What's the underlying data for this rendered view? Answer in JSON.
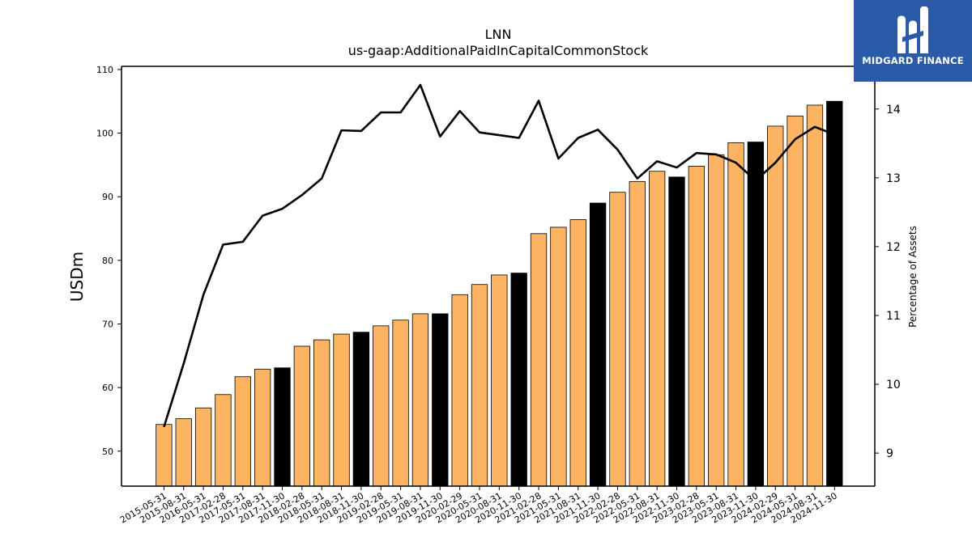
{
  "chart_data": {
    "type": "bar",
    "title": "LNN",
    "subtitle": "us-gaap:AdditionalPaidInCapitalCommonStock",
    "ylabel": "USDm",
    "y2label": "Percentage of Assets",
    "ylim": [
      44.5,
      110.5
    ],
    "y2lim": [
      8.52,
      14.62
    ],
    "yticks": [
      50,
      60,
      70,
      80,
      90,
      100,
      110
    ],
    "y2ticks": [
      9,
      10,
      11,
      12,
      13,
      14
    ],
    "categories": [
      "2015-05-31",
      "2015-08-31",
      "2016-05-31",
      "2017-02-28",
      "2017-05-31",
      "2017-08-31",
      "2017-11-30",
      "2018-02-28",
      "2018-05-31",
      "2018-08-31",
      "2018-11-30",
      "2019-02-28",
      "2019-05-31",
      "2019-08-31",
      "2019-11-30",
      "2020-02-29",
      "2020-05-31",
      "2020-08-31",
      "2020-11-30",
      "2021-02-28",
      "2021-05-31",
      "2021-08-31",
      "2021-11-30",
      "2022-02-28",
      "2022-05-31",
      "2022-08-31",
      "2022-11-30",
      "2023-02-28",
      "2023-05-31",
      "2023-08-31",
      "2023-11-30",
      "2024-02-29",
      "2024-05-31",
      "2024-08-31",
      "2024-11-30"
    ],
    "series": [
      {
        "type": "bar",
        "values": [
          54.2,
          55.1,
          56.8,
          58.9,
          61.7,
          62.9,
          63.1,
          66.5,
          67.5,
          68.4,
          68.7,
          69.7,
          70.6,
          71.6,
          71.6,
          74.6,
          76.2,
          77.7,
          78.0,
          84.2,
          85.2,
          86.4,
          89.0,
          90.7,
          92.4,
          94.0,
          93.1,
          94.8,
          96.6,
          98.5,
          98.6,
          101.1,
          102.7,
          104.4,
          105.0
        ],
        "colors": {
          "default": "#fdb462",
          "fiscal_year_end": "#000000"
        },
        "fiscal_year_end": [
          "2017-11-30",
          "2018-11-30",
          "2019-11-30",
          "2020-11-30",
          "2021-11-30",
          "2022-11-30",
          "2023-11-30",
          "2024-11-30"
        ]
      },
      {
        "type": "line",
        "axis": "right",
        "color": "#000000",
        "values": [
          9.38,
          10.3,
          11.3,
          12.03,
          12.07,
          12.45,
          12.55,
          12.75,
          12.99,
          13.69,
          13.68,
          13.95,
          13.95,
          14.35,
          13.6,
          13.97,
          13.66,
          13.62,
          13.58,
          14.12,
          13.28,
          13.58,
          13.7,
          13.41,
          12.99,
          13.24,
          13.15,
          13.36,
          13.34,
          13.22,
          12.96,
          13.22,
          13.56,
          13.74,
          13.63
        ]
      }
    ]
  },
  "logo": {
    "text": "MIDGARD FINANCE",
    "background": "#2a5aa8"
  }
}
